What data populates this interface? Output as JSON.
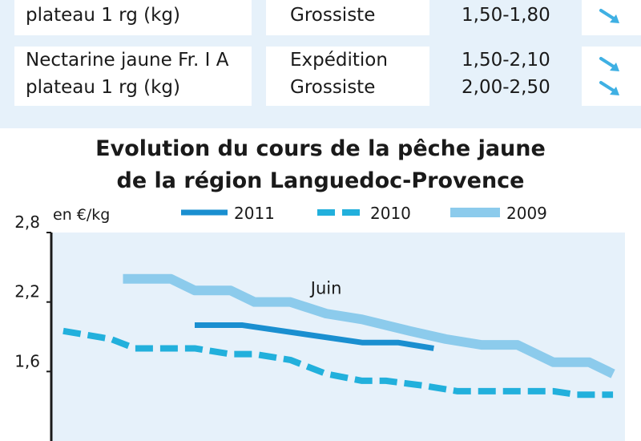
{
  "table": {
    "rows": [
      {
        "product_line1": "",
        "product_line2": "plateau 1 rg (kg)",
        "markets": [
          "",
          "Grossiste"
        ],
        "prices": [
          "",
          "1,50-1,80"
        ],
        "trends": [
          "",
          "down"
        ]
      },
      {
        "product_line1": "Nectarine jaune Fr. I A",
        "product_line2": "plateau 1 rg (kg)",
        "markets": [
          "Expédition",
          "Grossiste"
        ],
        "prices": [
          "1,50-2,10",
          "2,00-2,50"
        ],
        "trends": [
          "down",
          "down"
        ]
      }
    ],
    "colors": {
      "panel": "#e6f1fa",
      "cell": "#ffffff",
      "arrow": "#3fb0e3"
    }
  },
  "chart_data": {
    "type": "line",
    "title_lines": [
      "Evolution du cours de la pêche jaune",
      "de la région Languedoc-Provence"
    ],
    "ylabel": "en €/kg",
    "ylim": [
      1.0,
      2.8
    ],
    "yticks": [
      "2,8",
      "2,2",
      "1,6"
    ],
    "ytick_values": [
      2.8,
      2.2,
      1.6
    ],
    "xlim": [
      0,
      24
    ],
    "annotation": {
      "text": "Juin",
      "x": 11.5,
      "y": 2.27
    },
    "series": [
      {
        "name": "2011",
        "style": "solid",
        "color": "#1a8fd0",
        "width": 7,
        "x": [
          6,
          8,
          13,
          14.5,
          16
        ],
        "y": [
          2.0,
          2.0,
          1.85,
          1.85,
          1.8
        ]
      },
      {
        "name": "2010",
        "style": "dashed",
        "color": "#22b0dc",
        "width": 8,
        "x": [
          0.5,
          2.5,
          3.5,
          5,
          6,
          7.5,
          8.5,
          10,
          11.5,
          13,
          14,
          15.5,
          17,
          19,
          21,
          22,
          23.5
        ],
        "y": [
          1.95,
          1.88,
          1.8,
          1.8,
          1.8,
          1.75,
          1.75,
          1.7,
          1.58,
          1.52,
          1.52,
          1.48,
          1.43,
          1.43,
          1.43,
          1.4,
          1.4
        ]
      },
      {
        "name": "2009",
        "style": "solid",
        "color": "#8ccbec",
        "width": 12,
        "x": [
          3,
          5,
          6,
          7.5,
          8.5,
          10,
          11.5,
          13,
          15,
          16.5,
          18,
          19.5,
          21,
          22.5,
          23.5
        ],
        "y": [
          2.4,
          2.4,
          2.3,
          2.3,
          2.2,
          2.2,
          2.1,
          2.05,
          1.95,
          1.88,
          1.83,
          1.83,
          1.68,
          1.68,
          1.58
        ]
      }
    ]
  }
}
